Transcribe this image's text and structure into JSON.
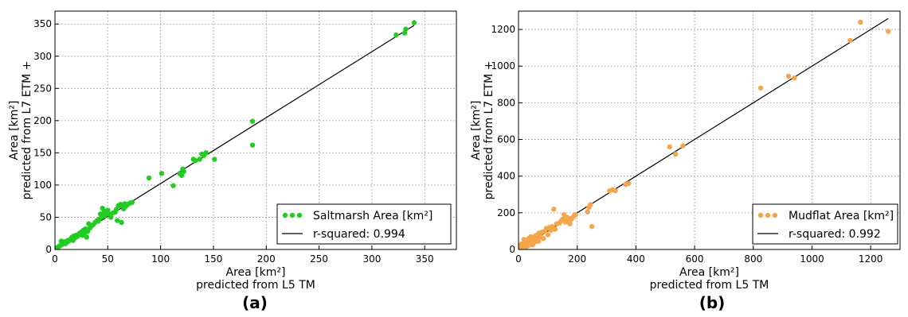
{
  "chart_data": [
    {
      "type": "scatter",
      "panel_label": "(a)",
      "xlabel": [
        "Area [km²]",
        "predicted from L5 TM"
      ],
      "ylabel": [
        "Area [km²]",
        "predicted from L7 ETM +"
      ],
      "xlim": [
        0,
        380
      ],
      "ylim": [
        0,
        370
      ],
      "xticks": [
        "0",
        "50",
        "100",
        "150",
        "200",
        "250",
        "300",
        "350"
      ],
      "yticks": [
        "0",
        "50",
        "100",
        "150",
        "200",
        "250",
        "300",
        "350"
      ],
      "grid": true,
      "legend_position": "lower-right",
      "point_color": "#22cc22",
      "line_color": "#000000",
      "series": [
        {
          "name": "Saltmarsh Area [km²]",
          "type": "scatter",
          "points": [
            [
              2,
              3
            ],
            [
              4,
              5
            ],
            [
              5,
              6
            ],
            [
              6,
              13
            ],
            [
              7,
              8
            ],
            [
              8,
              10
            ],
            [
              9,
              12
            ],
            [
              10,
              9
            ],
            [
              11,
              11
            ],
            [
              12,
              14
            ],
            [
              13,
              13
            ],
            [
              14,
              15
            ],
            [
              15,
              16
            ],
            [
              16,
              19
            ],
            [
              17,
              14
            ],
            [
              18,
              21
            ],
            [
              19,
              18
            ],
            [
              20,
              22
            ],
            [
              21,
              20
            ],
            [
              22,
              22
            ],
            [
              23,
              25
            ],
            [
              24,
              23
            ],
            [
              25,
              27
            ],
            [
              26,
              22
            ],
            [
              27,
              30
            ],
            [
              28,
              25
            ],
            [
              29,
              32
            ],
            [
              30,
              19
            ],
            [
              31,
              28
            ],
            [
              32,
              40
            ],
            [
              33,
              33
            ],
            [
              34,
              36
            ],
            [
              36,
              38
            ],
            [
              38,
              42
            ],
            [
              40,
              45
            ],
            [
              41,
              44
            ],
            [
              42,
              47
            ],
            [
              43,
              55
            ],
            [
              44,
              50
            ],
            [
              45,
              64
            ],
            [
              46,
              57
            ],
            [
              47,
              52
            ],
            [
              48,
              55
            ],
            [
              49,
              60
            ],
            [
              50,
              61
            ],
            [
              52,
              55
            ],
            [
              53,
              50
            ],
            [
              55,
              57
            ],
            [
              57,
              58
            ],
            [
              58,
              62
            ],
            [
              59,
              45
            ],
            [
              60,
              68
            ],
            [
              61,
              68
            ],
            [
              62,
              70
            ],
            [
              63,
              42
            ],
            [
              64,
              69
            ],
            [
              65,
              63
            ],
            [
              66,
              71
            ],
            [
              67,
              67
            ],
            [
              69,
              70
            ],
            [
              71,
              72
            ],
            [
              73,
              73
            ],
            [
              89,
              111
            ],
            [
              101,
              118
            ],
            [
              112,
              99
            ],
            [
              118,
              118
            ],
            [
              120,
              115
            ],
            [
              121,
              125
            ],
            [
              122,
              121
            ],
            [
              131,
              140
            ],
            [
              133,
              138
            ],
            [
              137,
              140
            ],
            [
              139,
              148
            ],
            [
              141,
              146
            ],
            [
              143,
              150
            ],
            [
              151,
              140
            ],
            [
              187,
              199
            ],
            [
              187,
              162
            ],
            [
              323,
              333
            ],
            [
              331,
              336
            ],
            [
              332,
              342
            ],
            [
              340,
              352
            ]
          ]
        },
        {
          "name": "r-squared: 0.994",
          "type": "line",
          "points": [
            [
              0,
              0
            ],
            [
              340,
              348
            ]
          ]
        }
      ]
    },
    {
      "type": "scatter",
      "panel_label": "(b)",
      "xlabel": [
        "Area [km²]",
        "predicted from L5 TM"
      ],
      "ylabel": [
        "Area [km²]",
        "predicted from L7 ETM +"
      ],
      "xlim": [
        0,
        1300
      ],
      "ylim": [
        0,
        1300
      ],
      "xticks": [
        "0",
        "200",
        "400",
        "600",
        "800",
        "1000",
        "1200"
      ],
      "yticks": [
        "0",
        "200",
        "400",
        "600",
        "800",
        "1000",
        "1200"
      ],
      "grid": true,
      "legend_position": "lower-right",
      "point_color": "#f5a54a",
      "line_color": "#000000",
      "series": [
        {
          "name": "Mudflat Area [km²]",
          "type": "scatter",
          "points": [
            [
              3,
              5
            ],
            [
              6,
              20
            ],
            [
              8,
              10
            ],
            [
              10,
              30
            ],
            [
              12,
              4
            ],
            [
              15,
              15
            ],
            [
              18,
              55
            ],
            [
              20,
              25
            ],
            [
              22,
              40
            ],
            [
              25,
              10
            ],
            [
              28,
              35
            ],
            [
              30,
              50
            ],
            [
              33,
              20
            ],
            [
              35,
              60
            ],
            [
              38,
              45
            ],
            [
              40,
              30
            ],
            [
              42,
              70
            ],
            [
              45,
              50
            ],
            [
              48,
              25
            ],
            [
              50,
              65
            ],
            [
              55,
              40
            ],
            [
              58,
              75
            ],
            [
              60,
              55
            ],
            [
              65,
              80
            ],
            [
              68,
              45
            ],
            [
              70,
              90
            ],
            [
              75,
              70
            ],
            [
              80,
              95
            ],
            [
              85,
              60
            ],
            [
              90,
              100
            ],
            [
              95,
              115
            ],
            [
              100,
              80
            ],
            [
              105,
              120
            ],
            [
              110,
              105
            ],
            [
              115,
              125
            ],
            [
              120,
              220
            ],
            [
              125,
              110
            ],
            [
              130,
              140
            ],
            [
              140,
              145
            ],
            [
              145,
              155
            ],
            [
              150,
              165
            ],
            [
              155,
              190
            ],
            [
              160,
              150
            ],
            [
              165,
              175
            ],
            [
              170,
              155
            ],
            [
              175,
              140
            ],
            [
              180,
              165
            ],
            [
              185,
              175
            ],
            [
              190,
              185
            ],
            [
              195,
              190
            ],
            [
              235,
              205
            ],
            [
              240,
              230
            ],
            [
              245,
              245
            ],
            [
              250,
              125
            ],
            [
              310,
              320
            ],
            [
              320,
              325
            ],
            [
              330,
              320
            ],
            [
              365,
              355
            ],
            [
              375,
              360
            ],
            [
              515,
              560
            ],
            [
              535,
              520
            ],
            [
              560,
              565
            ],
            [
              825,
              880
            ],
            [
              920,
              945
            ],
            [
              940,
              935
            ],
            [
              1130,
              1140
            ],
            [
              1165,
              1240
            ],
            [
              1260,
              1190
            ]
          ]
        },
        {
          "name": "r-squared: 0.992",
          "type": "line",
          "points": [
            [
              0,
              0
            ],
            [
              1260,
              1260
            ]
          ]
        }
      ]
    }
  ]
}
